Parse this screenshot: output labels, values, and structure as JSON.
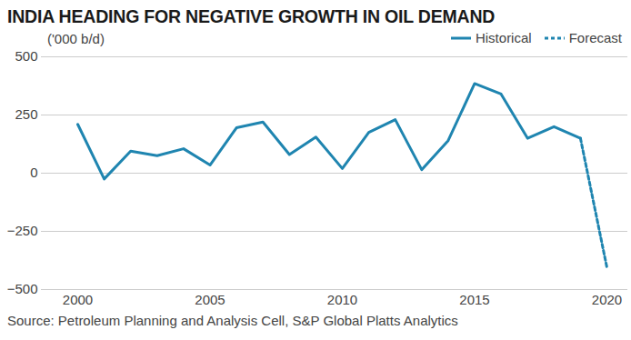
{
  "chart_data": {
    "type": "line",
    "title": "INDIA HEADING FOR NEGATIVE GROWTH IN OIL DEMAND",
    "subtitle": "('000 b/d)",
    "caption": "Source: Petroleum Planning and Analysis Cell, S&P Global Platts Analytics",
    "x": [
      2000,
      2001,
      2002,
      2003,
      2004,
      2005,
      2006,
      2007,
      2008,
      2009,
      2010,
      2011,
      2012,
      2013,
      2014,
      2015,
      2016,
      2017,
      2018,
      2019,
      2020
    ],
    "series": [
      {
        "name": "Historical",
        "color": "#1f85b0",
        "line_style": "solid",
        "values": [
          210,
          -25,
          95,
          75,
          105,
          35,
          195,
          220,
          80,
          155,
          20,
          175,
          230,
          15,
          140,
          385,
          340,
          150,
          200,
          150,
          null
        ]
      },
      {
        "name": "Forecast",
        "color": "#1f85b0",
        "line_style": "dotted",
        "values": [
          null,
          null,
          null,
          null,
          null,
          null,
          null,
          null,
          null,
          null,
          null,
          null,
          null,
          null,
          null,
          null,
          null,
          null,
          null,
          150,
          -405
        ]
      }
    ],
    "xlim": [
      2000,
      2020
    ],
    "xticks": [
      2000,
      2005,
      2010,
      2015,
      2020
    ],
    "ylim": [
      -500,
      500
    ],
    "yticks": [
      -500,
      -250,
      0,
      250,
      500
    ],
    "grid": true,
    "legend": "top-right"
  }
}
